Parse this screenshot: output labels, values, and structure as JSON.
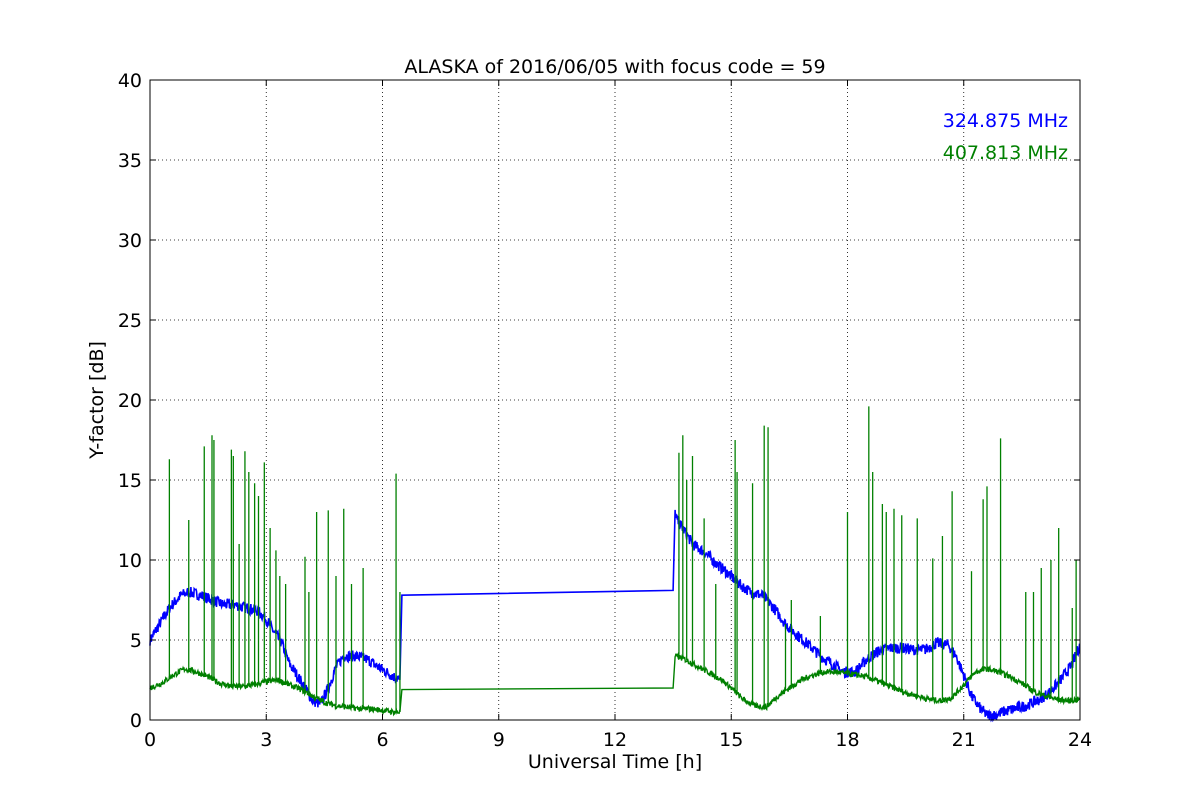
{
  "chart_data": {
    "type": "line",
    "title": "ALASKA of 2016/06/05 with focus code = 59",
    "xlabel": "Universal Time [h]",
    "ylabel": "Y-factor [dB]",
    "xlim": [
      0,
      24
    ],
    "ylim": [
      0,
      40
    ],
    "x_ticks": [
      0,
      3,
      6,
      9,
      12,
      15,
      18,
      21,
      24
    ],
    "y_ticks": [
      0,
      5,
      10,
      15,
      20,
      25,
      30,
      35,
      40
    ],
    "grid": true,
    "legend_position": "top-right",
    "series": [
      {
        "name": "324.875 MHz",
        "color": "#0000ff",
        "x": [
          0,
          0.2,
          0.5,
          0.8,
          1.0,
          1.3,
          1.6,
          1.9,
          2.2,
          2.5,
          2.8,
          3.0,
          3.2,
          3.4,
          3.6,
          3.8,
          4.0,
          4.2,
          4.4,
          4.6,
          4.8,
          5.0,
          5.3,
          5.6,
          5.9,
          6.1,
          6.3,
          6.45,
          6.5,
          13.5,
          13.55,
          13.6,
          13.8,
          14.0,
          14.3,
          14.6,
          14.9,
          15.2,
          15.5,
          15.8,
          16.1,
          16.4,
          16.7,
          17.0,
          17.3,
          17.6,
          17.9,
          18.2,
          18.5,
          18.8,
          19.1,
          19.4,
          19.7,
          20.0,
          20.3,
          20.6,
          20.8,
          21.0,
          21.2,
          21.4,
          21.6,
          21.8,
          22.0,
          22.3,
          22.6,
          22.9,
          23.2,
          23.5,
          23.8,
          24.0
        ],
        "y": [
          5.0,
          5.8,
          7.0,
          7.8,
          8.0,
          7.8,
          7.5,
          7.2,
          7.2,
          7.0,
          6.8,
          6.3,
          5.5,
          4.8,
          3.5,
          2.8,
          2.0,
          1.2,
          1.0,
          2.0,
          3.3,
          4.0,
          4.0,
          3.8,
          3.3,
          3.0,
          2.7,
          2.5,
          7.8,
          8.1,
          13.0,
          12.5,
          11.8,
          11.0,
          10.5,
          9.8,
          9.2,
          8.5,
          8.0,
          7.8,
          7.0,
          6.0,
          5.3,
          4.7,
          4.0,
          3.5,
          3.0,
          3.0,
          3.8,
          4.3,
          4.5,
          4.5,
          4.4,
          4.4,
          4.8,
          4.7,
          4.0,
          2.8,
          1.5,
          0.8,
          0.3,
          0.3,
          0.5,
          0.7,
          0.9,
          1.2,
          1.7,
          2.5,
          3.5,
          4.7
        ]
      },
      {
        "name": "407.813 MHz",
        "color": "#008000",
        "x": [
          0,
          0.3,
          0.6,
          0.9,
          1.2,
          1.5,
          1.8,
          2.1,
          2.4,
          2.7,
          3.0,
          3.3,
          3.6,
          3.9,
          4.2,
          4.5,
          4.8,
          5.1,
          5.4,
          5.7,
          6.0,
          6.3,
          6.45,
          6.5,
          13.5,
          13.55,
          13.8,
          14.1,
          14.4,
          14.7,
          15.0,
          15.3,
          15.6,
          15.9,
          16.2,
          16.5,
          16.8,
          17.1,
          17.4,
          17.7,
          18.0,
          18.3,
          18.6,
          18.9,
          19.2,
          19.5,
          19.8,
          20.1,
          20.4,
          20.7,
          21.0,
          21.3,
          21.6,
          21.9,
          22.2,
          22.5,
          22.8,
          23.1,
          23.4,
          23.7,
          24.0
        ],
        "y": [
          2.0,
          2.3,
          2.8,
          3.2,
          3.0,
          2.7,
          2.3,
          2.1,
          2.1,
          2.2,
          2.4,
          2.5,
          2.2,
          1.9,
          1.5,
          1.1,
          0.9,
          0.8,
          0.7,
          0.7,
          0.6,
          0.5,
          0.5,
          1.9,
          2.0,
          4.0,
          3.8,
          3.4,
          3.0,
          2.6,
          2.0,
          1.3,
          0.9,
          0.8,
          1.5,
          2.0,
          2.5,
          2.8,
          3.0,
          3.0,
          2.9,
          2.8,
          2.6,
          2.3,
          2.0,
          1.7,
          1.5,
          1.3,
          1.2,
          1.4,
          2.2,
          3.0,
          3.2,
          3.0,
          2.7,
          2.3,
          1.8,
          1.5,
          1.3,
          1.2,
          1.3
        ]
      }
    ],
    "spikes": {
      "series": "407.813 MHz",
      "x": [
        0.5,
        1.0,
        1.4,
        1.6,
        1.65,
        2.1,
        2.15,
        2.3,
        2.45,
        2.55,
        2.7,
        2.8,
        2.95,
        3.1,
        3.25,
        3.35,
        3.5,
        4.0,
        4.1,
        4.3,
        4.6,
        4.8,
        5.0,
        5.2,
        5.5,
        6.35,
        6.45,
        13.65,
        13.75,
        13.85,
        14.0,
        14.3,
        14.6,
        15.1,
        15.15,
        15.55,
        15.85,
        15.95,
        16.4,
        16.55,
        17.3,
        18.0,
        18.55,
        18.65,
        18.9,
        19.0,
        19.2,
        19.4,
        19.8,
        20.2,
        20.45,
        20.7,
        21.2,
        21.5,
        21.6,
        21.95,
        22.6,
        22.8,
        23.0,
        23.25,
        23.45,
        23.8,
        23.9
      ],
      "y": [
        16.3,
        12.5,
        17.1,
        17.8,
        17.5,
        16.9,
        16.5,
        11.0,
        16.8,
        15.5,
        14.8,
        14.0,
        16.1,
        12.0,
        10.6,
        9.0,
        8.5,
        10.2,
        8.0,
        13.0,
        13.1,
        9.0,
        13.2,
        8.5,
        9.5,
        15.4,
        8.0,
        16.7,
        17.8,
        15.0,
        16.5,
        12.6,
        8.5,
        17.5,
        15.5,
        14.8,
        18.4,
        18.3,
        6.0,
        7.5,
        6.5,
        13.0,
        19.6,
        15.5,
        13.5,
        13.0,
        13.2,
        12.8,
        12.6,
        10.1,
        11.5,
        14.3,
        9.3,
        13.8,
        14.6,
        17.6,
        8.0,
        8.0,
        9.5,
        10.0,
        12.0,
        7.0,
        10.0
      ]
    }
  }
}
